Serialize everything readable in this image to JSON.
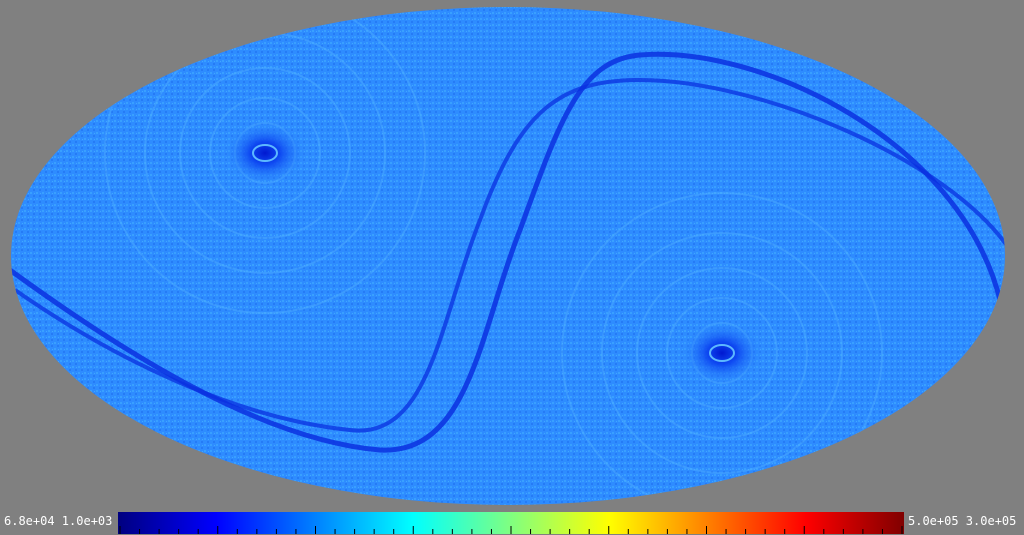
{
  "map": {
    "projection": "mollweide",
    "background_color": "#808080",
    "base_color": "#2f90ff",
    "dark_feature_color": "#0a2fe0",
    "features": [
      "s-shaped dark band",
      "upper-left pole vortex",
      "lower-right pole vortex"
    ]
  },
  "colorbar": {
    "left_labels": "6.8e+04 1.0e+03",
    "right_labels": "5.0e+05 3.0e+05",
    "colors": [
      "#000080",
      "#0000ff",
      "#0080ff",
      "#00ffff",
      "#80ff80",
      "#ffff00",
      "#ff8000",
      "#ff0000",
      "#800000"
    ]
  }
}
